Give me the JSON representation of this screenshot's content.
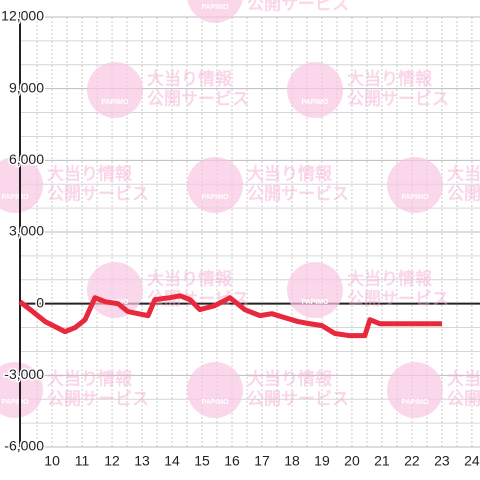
{
  "chart_data": {
    "type": "line",
    "watermark": {
      "brand": "PAPIMO",
      "line1": "大当り情報",
      "line2": "公開サービス"
    },
    "x": [
      8.93,
      9.27,
      9.77,
      10.43,
      10.77,
      11.1,
      11.43,
      11.77,
      12.2,
      12.53,
      12.87,
      13.2,
      13.43,
      13.93,
      14.27,
      14.6,
      14.93,
      15.43,
      15.93,
      16.43,
      16.93,
      17.33,
      17.77,
      18.2,
      18.6,
      19.0,
      19.43,
      19.93,
      20.43,
      20.6,
      20.93,
      23.0
    ],
    "series": [
      {
        "color": "#e8283c",
        "values": [
          80,
          -250,
          -750,
          -1170,
          -1000,
          -670,
          250,
          80,
          0,
          -330,
          -420,
          -500,
          170,
          250,
          330,
          170,
          -250,
          -80,
          250,
          -250,
          -500,
          -420,
          -590,
          -750,
          -840,
          -920,
          -1250,
          -1340,
          -1340,
          -670,
          -840,
          -840
        ]
      }
    ],
    "xlim": [
      8.93,
      24.27
    ],
    "ylim": [
      -6000,
      12000
    ],
    "xticks": [
      10,
      11,
      12,
      13,
      14,
      15,
      16,
      17,
      18,
      19,
      20,
      21,
      22,
      23,
      24
    ],
    "yticks": [
      {
        "value": -6000,
        "label": "-6,000"
      },
      {
        "value": -3000,
        "label": "-3,000"
      },
      0,
      {
        "value": 3000,
        "label": "3,000"
      },
      {
        "value": 6000,
        "label": "6,000"
      },
      {
        "value": 9000,
        "label": "9,000"
      },
      {
        "value": 12000,
        "label": "12,000"
      }
    ],
    "y_gridlines": [
      -5000,
      -4000,
      -2000,
      -1000,
      1000,
      2000,
      4000,
      5000,
      7000,
      8000,
      10000,
      11000
    ],
    "x_gridlines": [
      9.5,
      10,
      10.5,
      11,
      11.5,
      12,
      12.5,
      13,
      13.5,
      14,
      14.5,
      15,
      15.5,
      16,
      16.5,
      17,
      17.5,
      18,
      18.5,
      19,
      19.5,
      20,
      20.5,
      21,
      21.5,
      22,
      22.5,
      23,
      23.5,
      24
    ],
    "grid": true
  }
}
